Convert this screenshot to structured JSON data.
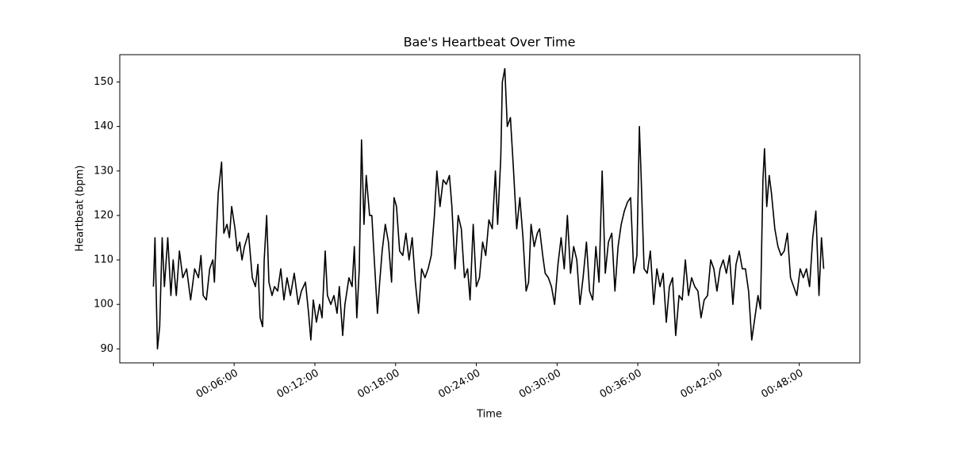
{
  "chart_data": {
    "type": "line",
    "title": "Bae's Heartbeat Over Time",
    "x_label": "Time",
    "y_label": "Heartbeat (bpm)",
    "color": "#000000",
    "x": [
      0,
      7,
      18,
      28,
      39,
      49,
      64,
      78,
      88,
      102,
      116,
      131,
      148,
      166,
      184,
      201,
      212,
      222,
      236,
      251,
      265,
      272,
      279,
      289,
      304,
      314,
      328,
      339,
      349,
      364,
      374,
      385,
      395,
      406,
      424,
      441,
      455,
      466,
      476,
      487,
      494,
      505,
      515,
      529,
      540,
      554,
      568,
      582,
      596,
      611,
      628,
      646,
      660,
      678,
      692,
      702,
      713,
      727,
      741,
      752,
      766,
      776,
      791,
      805,
      819,
      829,
      844,
      854,
      872,
      886,
      896,
      907,
      918,
      928,
      939,
      949,
      964,
      974,
      985,
      999,
      1009,
      1020,
      1034,
      1048,
      1062,
      1073,
      1084,
      1098,
      1112,
      1126,
      1140,
      1154,
      1168,
      1182,
      1196,
      1211,
      1225,
      1239,
      1253,
      1264,
      1278,
      1292,
      1306,
      1320,
      1331,
      1345,
      1359,
      1373,
      1387,
      1401,
      1412,
      1426,
      1440,
      1454,
      1468,
      1482,
      1496,
      1511,
      1525,
      1535,
      1549,
      1556,
      1567,
      1578,
      1592,
      1606,
      1620,
      1634,
      1648,
      1662,
      1673,
      1684,
      1698,
      1712,
      1722,
      1736,
      1747,
      1761,
      1775,
      1789,
      1804,
      1818,
      1832,
      1846,
      1860,
      1874,
      1888,
      1902,
      1916,
      1931,
      1945,
      1959,
      1973,
      1987,
      2001,
      2015,
      2029,
      2044,
      2058,
      2072,
      2086,
      2100,
      2114,
      2128,
      2142,
      2156,
      2167,
      2174,
      2188,
      2202,
      2216,
      2231,
      2245,
      2259,
      2273,
      2287,
      2301,
      2315,
      2329,
      2344,
      2358,
      2372,
      2386,
      2400,
      2414,
      2428,
      2442,
      2456,
      2471,
      2485,
      2499,
      2513,
      2527,
      2541,
      2555,
      2569,
      2584,
      2598,
      2612,
      2626,
      2640,
      2654,
      2668,
      2682,
      2696,
      2707,
      2718,
      2725,
      2735,
      2746,
      2756,
      2771,
      2785,
      2799,
      2813,
      2827,
      2841,
      2855,
      2869,
      2884,
      2898,
      2912,
      2926,
      2940,
      2954,
      2968,
      2979,
      2989
    ],
    "values": [
      104,
      115,
      90,
      95,
      115,
      104,
      115,
      102,
      110,
      102,
      112,
      106,
      108,
      101,
      108,
      106,
      111,
      102,
      101,
      108,
      110,
      105,
      114,
      125,
      132,
      116,
      118,
      115,
      122,
      117,
      112,
      114,
      110,
      113,
      116,
      106,
      104,
      109,
      97,
      95,
      110,
      120,
      105,
      102,
      104,
      103,
      108,
      101,
      106,
      102,
      107,
      100,
      103,
      105,
      98,
      92,
      101,
      96,
      100,
      97,
      112,
      102,
      100,
      102,
      98,
      104,
      93,
      100,
      106,
      104,
      113,
      97,
      108,
      137,
      118,
      129,
      120,
      120,
      110,
      98,
      105,
      112,
      118,
      114,
      105,
      124,
      122,
      112,
      111,
      116,
      110,
      115,
      105,
      98,
      108,
      106,
      108,
      111,
      120,
      130,
      122,
      128,
      127,
      129,
      122,
      108,
      120,
      117,
      106,
      108,
      101,
      118,
      104,
      106,
      114,
      111,
      119,
      117,
      130,
      118,
      133,
      150,
      153,
      140,
      142,
      130,
      117,
      124,
      115,
      103,
      105,
      118,
      113,
      116,
      117,
      111,
      107,
      106,
      104,
      100,
      109,
      115,
      108,
      120,
      107,
      113,
      110,
      100,
      106,
      114,
      103,
      101,
      113,
      105,
      130,
      107,
      114,
      116,
      103,
      113,
      118,
      121,
      123,
      124,
      107,
      111,
      140,
      130,
      108,
      107,
      112,
      100,
      108,
      104,
      107,
      96,
      104,
      106,
      93,
      102,
      101,
      110,
      102,
      106,
      104,
      103,
      97,
      101,
      102,
      110,
      108,
      103,
      108,
      110,
      107,
      111,
      100,
      109,
      112,
      108,
      108,
      103,
      92,
      97,
      102,
      99,
      128,
      135,
      122,
      129,
      125,
      117,
      113,
      111,
      112,
      116,
      106,
      104,
      102,
      108,
      106,
      108,
      104,
      115,
      121,
      102,
      115,
      108
    ],
    "xlim": [
      -150,
      3150
    ],
    "xticks": [
      {
        "value": 0,
        "label": null
      },
      {
        "value": 360,
        "label": "00:06:00"
      },
      {
        "value": 720,
        "label": "00:12:00"
      },
      {
        "value": 1080,
        "label": "00:18:00"
      },
      {
        "value": 1440,
        "label": "00:24:00"
      },
      {
        "value": 1800,
        "label": "00:30:00"
      },
      {
        "value": 2160,
        "label": "00:36:00"
      },
      {
        "value": 2520,
        "label": "00:42:00"
      },
      {
        "value": 2880,
        "label": "00:48:00"
      }
    ],
    "ylim": [
      86.85,
      156.15
    ],
    "yticks": [
      90,
      100,
      110,
      120,
      130,
      140,
      150
    ],
    "grid": false
  }
}
